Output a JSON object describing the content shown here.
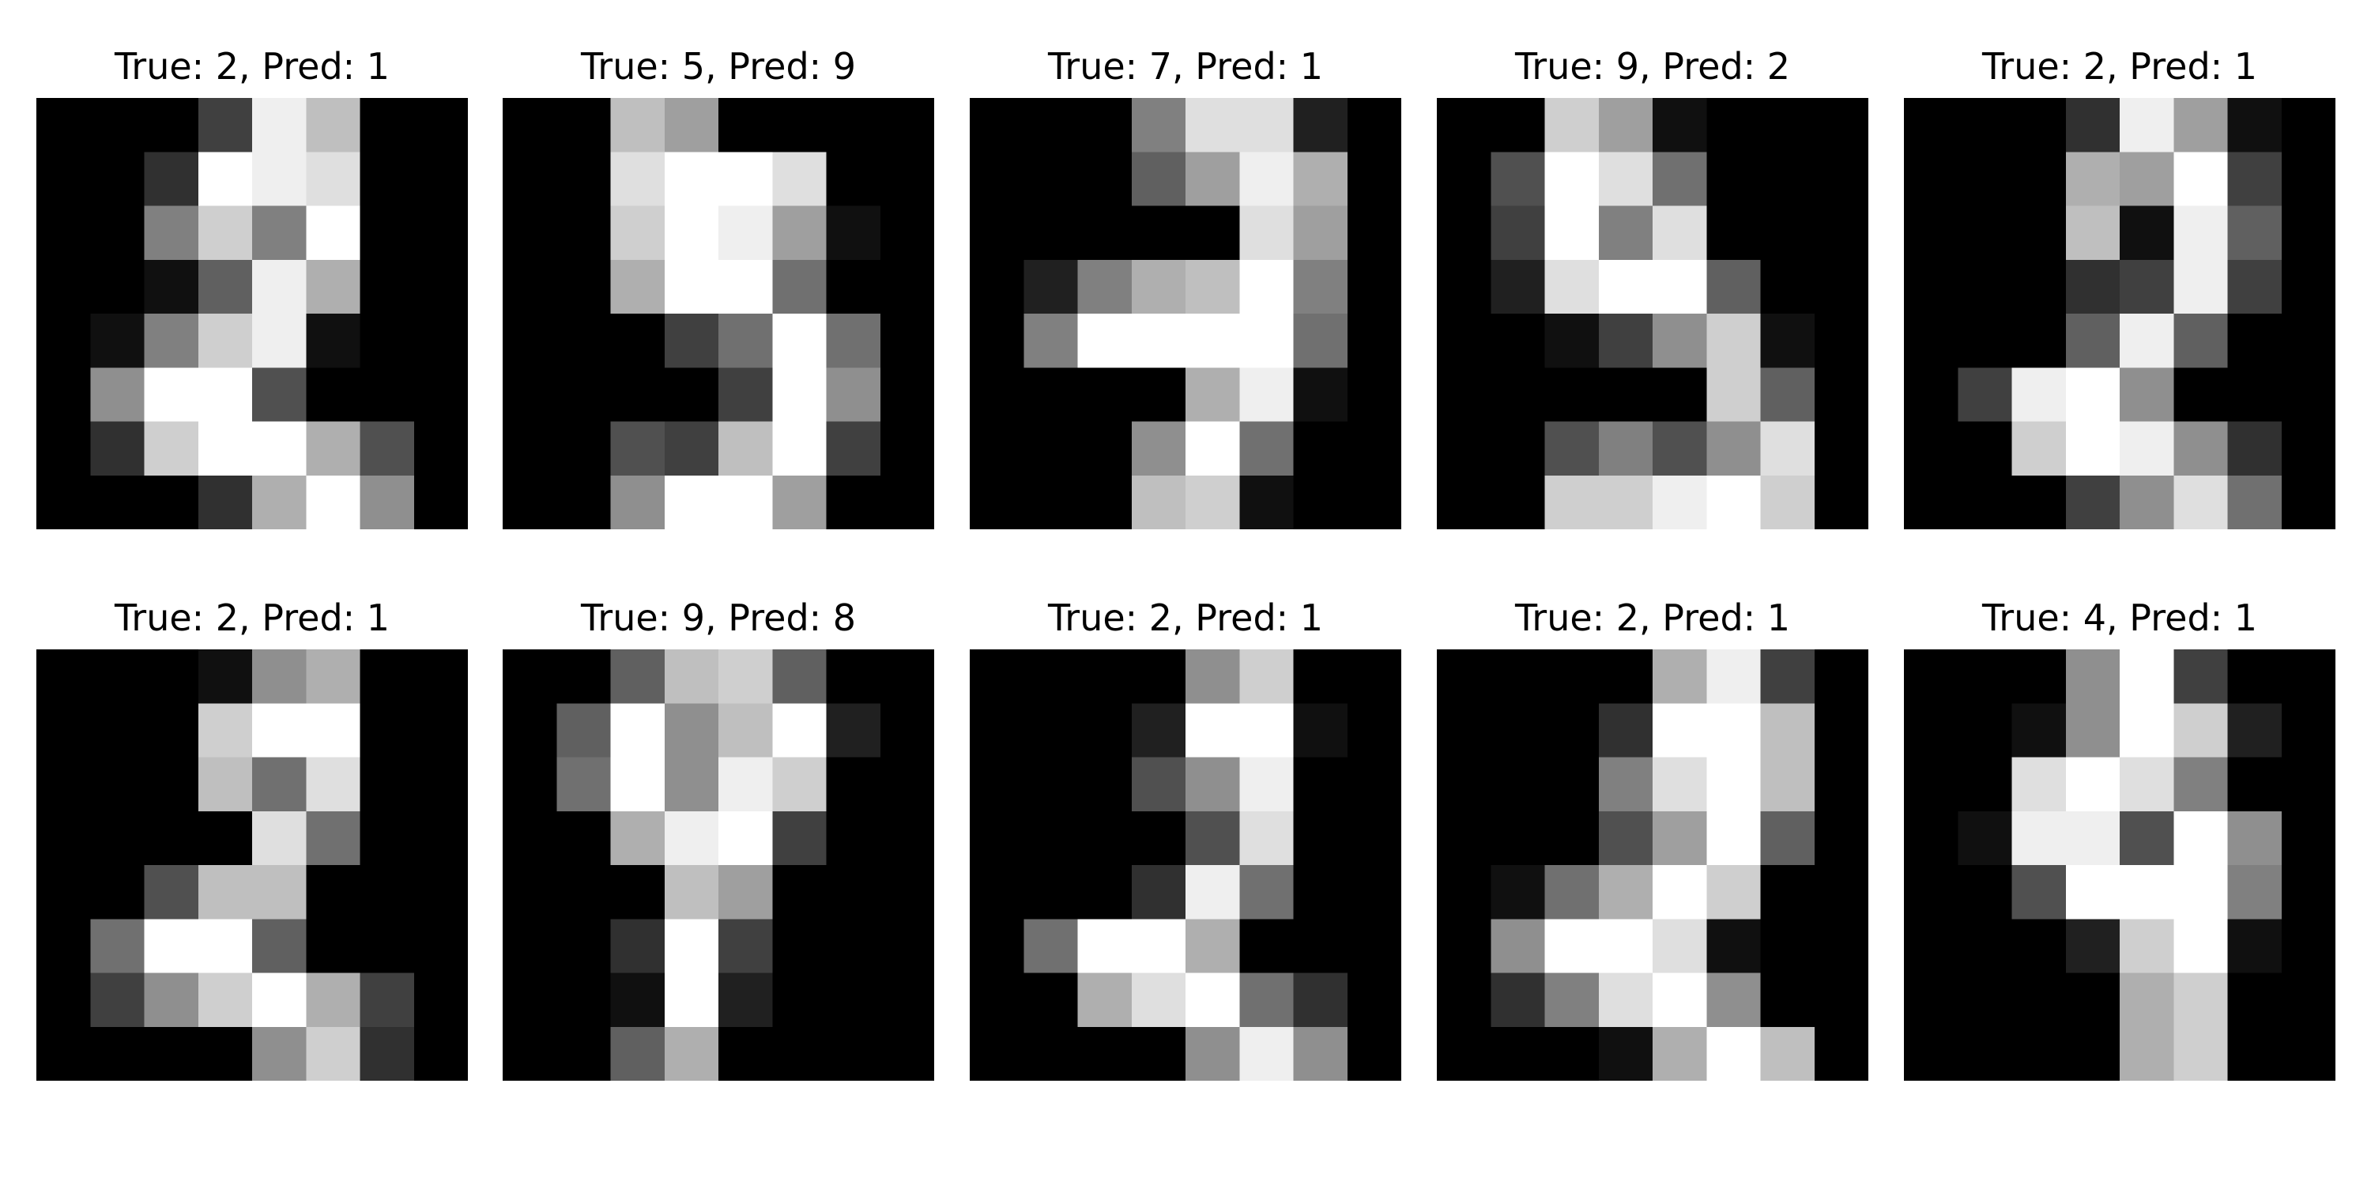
{
  "chart_data": {
    "type": "heatmap",
    "grid": false,
    "colormap": "gray",
    "panels": [
      {
        "title": "True: 2, Pred: 1",
        "true_label": 2,
        "pred_label": 1,
        "pixels": [
          [
            0,
            0,
            0,
            4,
            15,
            12,
            0,
            0
          ],
          [
            0,
            0,
            3,
            16,
            15,
            14,
            0,
            0
          ],
          [
            0,
            0,
            8,
            13,
            8,
            16,
            0,
            0
          ],
          [
            0,
            0,
            1,
            6,
            15,
            11,
            0,
            0
          ],
          [
            0,
            1,
            8,
            13,
            15,
            1,
            0,
            0
          ],
          [
            0,
            9,
            16,
            16,
            5,
            0,
            0,
            0
          ],
          [
            0,
            3,
            13,
            16,
            16,
            11,
            5,
            0
          ],
          [
            0,
            0,
            0,
            3,
            11,
            16,
            9,
            0
          ]
        ]
      },
      {
        "title": "True: 5, Pred: 9",
        "true_label": 5,
        "pred_label": 9,
        "pixels": [
          [
            0,
            0,
            12,
            10,
            0,
            0,
            0,
            0
          ],
          [
            0,
            0,
            14,
            16,
            16,
            14,
            0,
            0
          ],
          [
            0,
            0,
            13,
            16,
            15,
            10,
            1,
            0
          ],
          [
            0,
            0,
            11,
            16,
            16,
            7,
            0,
            0
          ],
          [
            0,
            0,
            0,
            4,
            7,
            16,
            7,
            0
          ],
          [
            0,
            0,
            0,
            0,
            4,
            16,
            9,
            0
          ],
          [
            0,
            0,
            5,
            4,
            12,
            16,
            4,
            0
          ],
          [
            0,
            0,
            9,
            16,
            16,
            10,
            0,
            0
          ]
        ]
      },
      {
        "title": "True: 7, Pred: 1",
        "true_label": 7,
        "pred_label": 1,
        "pixels": [
          [
            0,
            0,
            0,
            8,
            14,
            14,
            2,
            0
          ],
          [
            0,
            0,
            0,
            6,
            10,
            15,
            11,
            0
          ],
          [
            0,
            0,
            0,
            0,
            0,
            14,
            10,
            0
          ],
          [
            0,
            2,
            8,
            11,
            12,
            16,
            8,
            0
          ],
          [
            0,
            8,
            16,
            16,
            16,
            16,
            7,
            0
          ],
          [
            0,
            0,
            0,
            0,
            11,
            15,
            1,
            0
          ],
          [
            0,
            0,
            0,
            9,
            16,
            7,
            0,
            0
          ],
          [
            0,
            0,
            0,
            12,
            13,
            1,
            0,
            0
          ]
        ]
      },
      {
        "title": "True: 9, Pred: 2",
        "true_label": 9,
        "pred_label": 2,
        "pixels": [
          [
            0,
            0,
            13,
            10,
            1,
            0,
            0,
            0
          ],
          [
            0,
            5,
            16,
            14,
            7,
            0,
            0,
            0
          ],
          [
            0,
            4,
            16,
            8,
            14,
            0,
            0,
            0
          ],
          [
            0,
            2,
            14,
            16,
            16,
            6,
            0,
            0
          ],
          [
            0,
            0,
            1,
            4,
            9,
            13,
            1,
            0
          ],
          [
            0,
            0,
            0,
            0,
            0,
            13,
            6,
            0
          ],
          [
            0,
            0,
            5,
            8,
            5,
            9,
            14,
            0
          ],
          [
            0,
            0,
            13,
            13,
            15,
            16,
            13,
            0
          ]
        ]
      },
      {
        "title": "True: 2, Pred: 1",
        "true_label": 2,
        "pred_label": 1,
        "pixels": [
          [
            0,
            0,
            0,
            3,
            15,
            10,
            1,
            0
          ],
          [
            0,
            0,
            0,
            11,
            10,
            16,
            4,
            0
          ],
          [
            0,
            0,
            0,
            12,
            1,
            15,
            6,
            0
          ],
          [
            0,
            0,
            0,
            3,
            4,
            15,
            4,
            0
          ],
          [
            0,
            0,
            0,
            6,
            15,
            6,
            0,
            0
          ],
          [
            0,
            4,
            15,
            16,
            9,
            0,
            0,
            0
          ],
          [
            0,
            0,
            13,
            16,
            15,
            9,
            3,
            0
          ],
          [
            0,
            0,
            0,
            4,
            9,
            14,
            7,
            0
          ]
        ]
      },
      {
        "title": "True: 2, Pred: 1",
        "true_label": 2,
        "pred_label": 1,
        "pixels": [
          [
            0,
            0,
            0,
            1,
            9,
            11,
            0,
            0
          ],
          [
            0,
            0,
            0,
            13,
            16,
            16,
            0,
            0
          ],
          [
            0,
            0,
            0,
            12,
            7,
            14,
            0,
            0
          ],
          [
            0,
            0,
            0,
            0,
            14,
            7,
            0,
            0
          ],
          [
            0,
            0,
            5,
            12,
            12,
            0,
            0,
            0
          ],
          [
            0,
            7,
            16,
            16,
            6,
            0,
            0,
            0
          ],
          [
            0,
            4,
            9,
            13,
            16,
            11,
            4,
            0
          ],
          [
            0,
            0,
            0,
            0,
            9,
            13,
            3,
            0
          ]
        ]
      },
      {
        "title": "True: 9, Pred: 8",
        "true_label": 9,
        "pred_label": 8,
        "pixels": [
          [
            0,
            0,
            6,
            12,
            13,
            6,
            0,
            0
          ],
          [
            0,
            6,
            16,
            9,
            12,
            16,
            2,
            0
          ],
          [
            0,
            7,
            16,
            9,
            15,
            13,
            0,
            0
          ],
          [
            0,
            0,
            11,
            15,
            16,
            4,
            0,
            0
          ],
          [
            0,
            0,
            0,
            12,
            10,
            0,
            0,
            0
          ],
          [
            0,
            0,
            3,
            16,
            4,
            0,
            0,
            0
          ],
          [
            0,
            0,
            1,
            16,
            2,
            0,
            0,
            0
          ],
          [
            0,
            0,
            6,
            11,
            0,
            0,
            0,
            0
          ]
        ]
      },
      {
        "title": "True: 2, Pred: 1",
        "true_label": 2,
        "pred_label": 1,
        "pixels": [
          [
            0,
            0,
            0,
            0,
            9,
            13,
            0,
            0
          ],
          [
            0,
            0,
            0,
            2,
            16,
            16,
            1,
            0
          ],
          [
            0,
            0,
            0,
            5,
            9,
            15,
            0,
            0
          ],
          [
            0,
            0,
            0,
            0,
            5,
            14,
            0,
            0
          ],
          [
            0,
            0,
            0,
            3,
            15,
            7,
            0,
            0
          ],
          [
            0,
            7,
            16,
            16,
            11,
            0,
            0,
            0
          ],
          [
            0,
            0,
            11,
            14,
            16,
            7,
            3,
            0
          ],
          [
            0,
            0,
            0,
            0,
            9,
            15,
            9,
            0
          ]
        ]
      },
      {
        "title": "True: 2, Pred: 1",
        "true_label": 2,
        "pred_label": 1,
        "pixels": [
          [
            0,
            0,
            0,
            0,
            11,
            15,
            4,
            0
          ],
          [
            0,
            0,
            0,
            3,
            16,
            16,
            12,
            0
          ],
          [
            0,
            0,
            0,
            8,
            14,
            16,
            12,
            0
          ],
          [
            0,
            0,
            0,
            5,
            10,
            16,
            6,
            0
          ],
          [
            0,
            1,
            7,
            11,
            16,
            13,
            0,
            0
          ],
          [
            0,
            9,
            16,
            16,
            14,
            1,
            0,
            0
          ],
          [
            0,
            3,
            8,
            14,
            16,
            9,
            0,
            0
          ],
          [
            0,
            0,
            0,
            1,
            11,
            16,
            12,
            0
          ]
        ]
      },
      {
        "title": "True: 4, Pred: 1",
        "true_label": 4,
        "pred_label": 1,
        "pixels": [
          [
            0,
            0,
            0,
            9,
            16,
            4,
            0,
            0
          ],
          [
            0,
            0,
            1,
            9,
            16,
            13,
            2,
            0
          ],
          [
            0,
            0,
            14,
            16,
            14,
            8,
            0,
            0
          ],
          [
            0,
            1,
            15,
            15,
            5,
            16,
            9,
            0
          ],
          [
            0,
            0,
            5,
            16,
            16,
            16,
            8,
            0
          ],
          [
            0,
            0,
            0,
            2,
            13,
            16,
            1,
            0
          ],
          [
            0,
            0,
            0,
            0,
            11,
            13,
            0,
            0
          ],
          [
            0,
            0,
            0,
            0,
            11,
            13,
            0,
            0
          ]
        ]
      }
    ]
  }
}
